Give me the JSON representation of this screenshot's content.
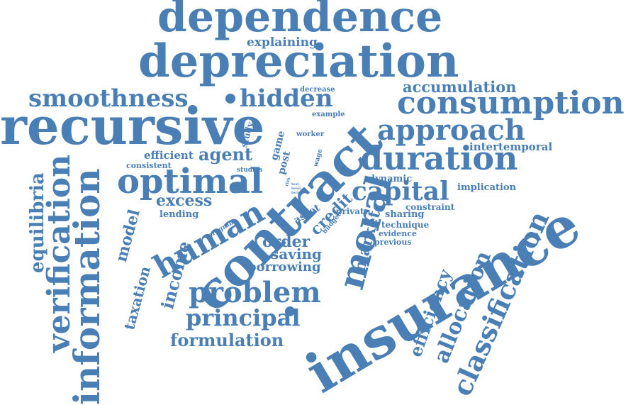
{
  "colors": {
    "word": "#4a7fb5",
    "background": "#ffffff"
  },
  "words": {
    "dependence": "dependence",
    "depreciation": "depreciation",
    "explaining": "explaining",
    "accumulation": "accumulation",
    "consumption": "consumption",
    "smoothness": "smoothness",
    "hidden": "hidden",
    "decrease": "decrease",
    "example": "example",
    "recursive": "recursive",
    "contract": "contract",
    "approach": "approach",
    "worker": "worker",
    "study": "study",
    "game": "game",
    "post": "post",
    "studies": "studies",
    "wage": "wage",
    "efficient": "efficient",
    "agent": "agent",
    "consistent": "consistent",
    "intertemporal": "intertemporal",
    "duration": "duration",
    "optimal": "optimal",
    "dynamic": "dynamic",
    "implication": "implication",
    "equilibria": "equilibria",
    "verification": "verification",
    "information": "information",
    "excess": "excess",
    "capital": "capital",
    "lending": "lending",
    "asset": "asset",
    "credit": "credit",
    "budget": "budget",
    "private": "private",
    "constraint": "constraint",
    "sharing": "sharing",
    "technique": "technique",
    "evidence": "evidence",
    "previous": "previous",
    "model": "model",
    "program": "program",
    "human": "human",
    "order": "order",
    "market": "market",
    "moral": "moral",
    "insurance": "insurance",
    "saving": "saving",
    "borrowing": "borrowing",
    "income": "income",
    "taxation": "taxation",
    "problem": "problem",
    "principal": "principal",
    "formulation": "formulation",
    "efficiency": "efficiency",
    "allocation": "allocation",
    "classification": "classification",
    "risk": "risk",
    "test": "test",
    "level": "level",
    "term": "term"
  }
}
